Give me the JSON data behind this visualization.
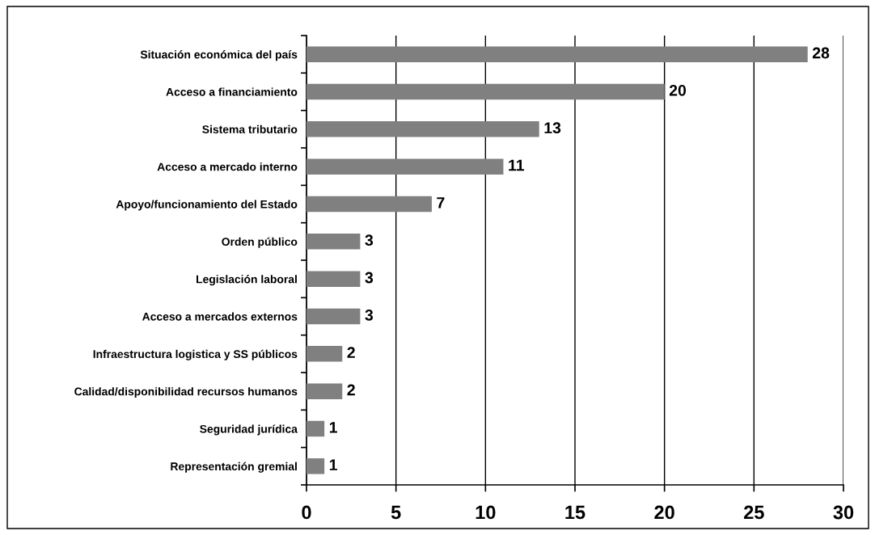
{
  "chart_data": {
    "type": "bar",
    "orientation": "horizontal",
    "categories": [
      "Situación económica del país",
      "Acceso a financiamiento",
      "Sistema tributario",
      "Acceso a mercado interno",
      "Apoyo/funcionamiento del Estado",
      "Orden público",
      "Legislación laboral",
      "Acceso a mercados externos",
      "Infraestructura logistica y SS públicos",
      "Calidad/disponibilidad recursos humanos",
      "Seguridad jurídica",
      "Representación gremial"
    ],
    "values": [
      28,
      20,
      13,
      11,
      7,
      3,
      3,
      3,
      2,
      2,
      1,
      1
    ],
    "color": "#808080",
    "xlim": [
      0,
      30
    ],
    "xticks": [
      0,
      5,
      10,
      15,
      20,
      25,
      30
    ],
    "grid": "x",
    "data_labels": true
  }
}
